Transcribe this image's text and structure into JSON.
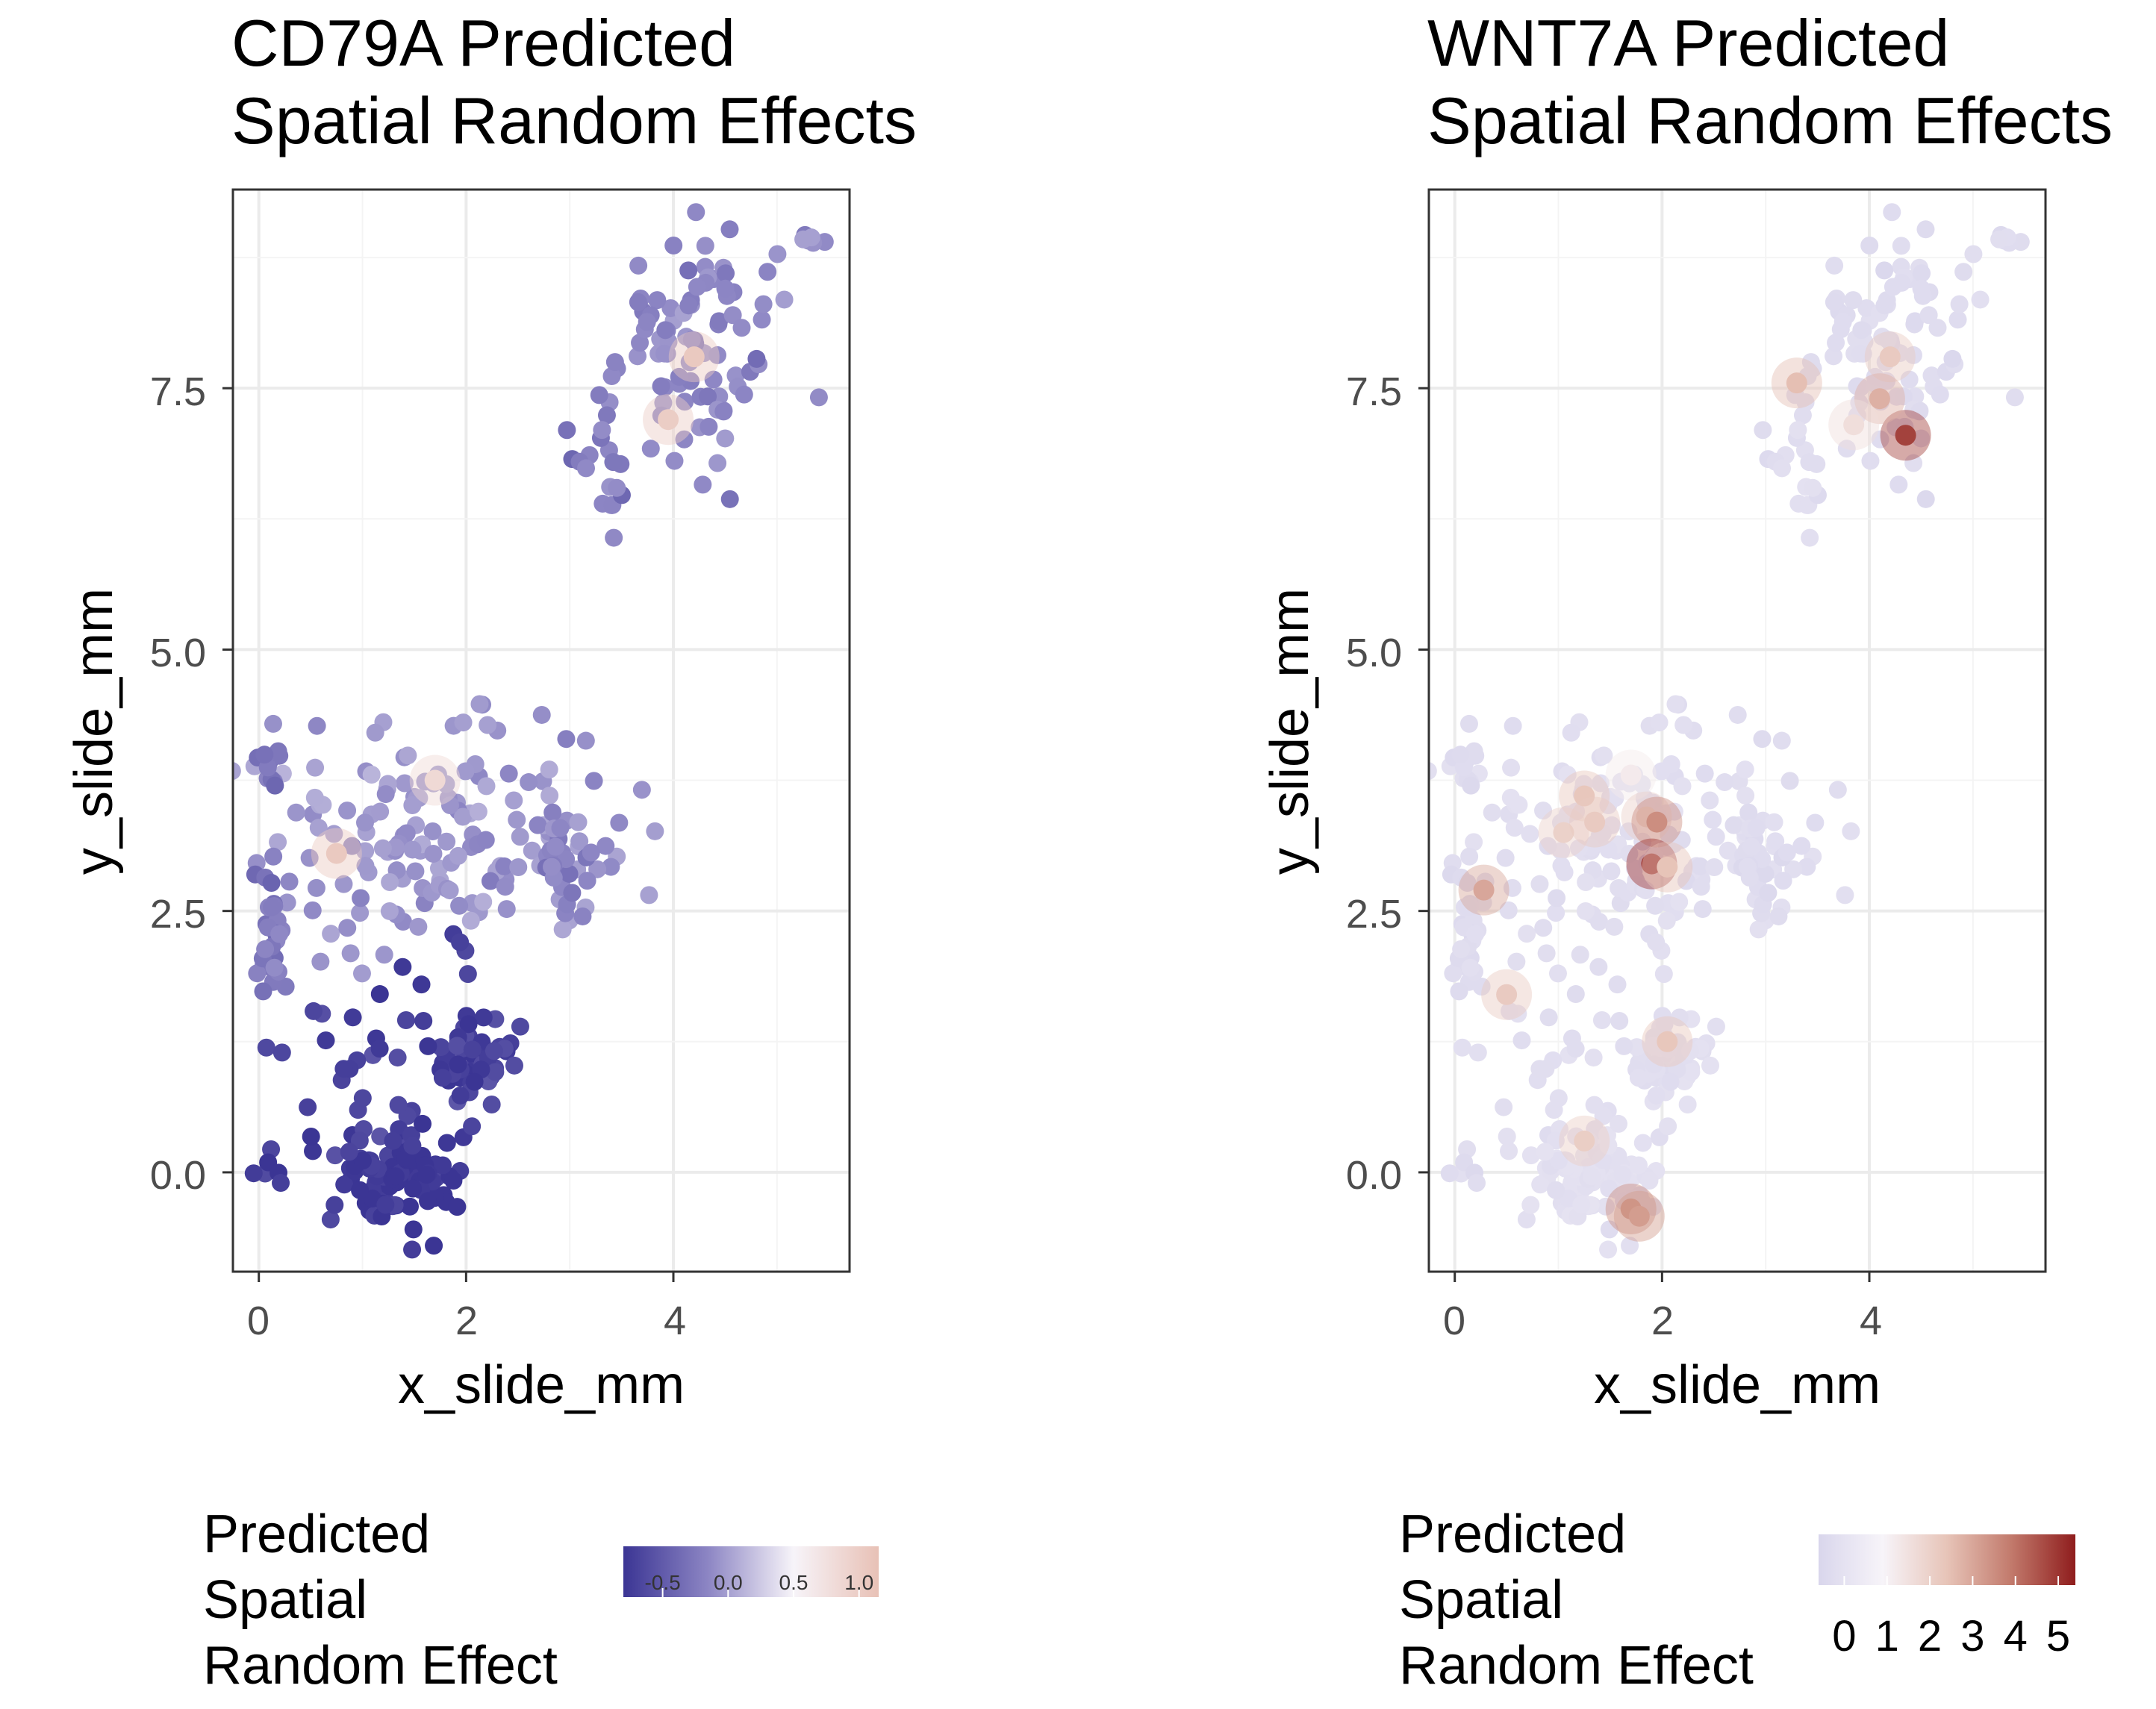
{
  "chart_data": [
    {
      "type": "scatter",
      "title_lines": [
        "CD79A Predicted",
        "Spatial Random Effects"
      ],
      "xlabel": "x_slide_mm",
      "ylabel": "y_slide_mm",
      "xlim": [
        -0.25,
        5.7
      ],
      "ylim": [
        -0.95,
        9.4
      ],
      "x_ticks": [
        0,
        2,
        4
      ],
      "x_tick_labels": [
        "0",
        "2",
        "4"
      ],
      "y_ticks": [
        0.0,
        2.5,
        5.0,
        7.5
      ],
      "y_tick_labels": [
        "0.0",
        "2.5",
        "5.0",
        "7.5"
      ],
      "grid": true,
      "legend": {
        "title_lines": [
          "Predicted",
          "Spatial",
          "Random Effect"
        ],
        "position": "bottom",
        "range": [
          -0.8,
          1.15
        ],
        "ticks": [
          -0.5,
          0.0,
          0.5,
          1.0
        ],
        "tick_labels": [
          "-0.5",
          "0.0",
          "0.5",
          "1.0"
        ],
        "colors": [
          "#3b3594",
          "#8d86c4",
          "#f7f4f9",
          "#e8c1b6"
        ]
      },
      "clusters": [
        {
          "region": "upper-right",
          "cx": 4.3,
          "cy": 7.9,
          "sx": 0.45,
          "sy": 0.55,
          "n": 90,
          "value": -0.15
        },
        {
          "region": "upper-right-strip",
          "cx": 3.35,
          "cy": 6.75,
          "sx": 0.12,
          "sy": 0.25,
          "n": 18,
          "value": -0.2
        },
        {
          "region": "upper-right-tail",
          "cx": 5.3,
          "cy": 8.9,
          "sx": 0.1,
          "sy": 0.04,
          "n": 6,
          "value": -0.1
        },
        {
          "region": "mid-band",
          "cx": 1.8,
          "cy": 3.2,
          "sx": 0.9,
          "sy": 0.5,
          "n": 160,
          "value": -0.05
        },
        {
          "region": "mid-band-right",
          "cx": 2.9,
          "cy": 3.0,
          "sx": 0.12,
          "sy": 0.2,
          "n": 30,
          "value": -0.15
        },
        {
          "region": "left-edge",
          "cx": 0.12,
          "cy": 2.2,
          "sx": 0.08,
          "sy": 0.35,
          "n": 30,
          "value": -0.25
        },
        {
          "region": "left-top",
          "cx": 0.12,
          "cy": 3.9,
          "sx": 0.06,
          "sy": 0.12,
          "n": 12,
          "value": -0.3
        },
        {
          "region": "lower-scatter",
          "cx": 1.3,
          "cy": 1.0,
          "sx": 0.7,
          "sy": 0.6,
          "n": 45,
          "value": -0.7
        },
        {
          "region": "lower-cluster",
          "cx": 2.05,
          "cy": 1.1,
          "sx": 0.2,
          "sy": 0.22,
          "n": 60,
          "value": -0.7
        },
        {
          "region": "bottom-cluster",
          "cx": 1.4,
          "cy": 0.0,
          "sx": 0.3,
          "sy": 0.22,
          "n": 90,
          "value": -0.8
        },
        {
          "region": "bottom-left",
          "cx": 0.05,
          "cy": -0.1,
          "sx": 0.12,
          "sy": 0.12,
          "n": 6,
          "value": -0.75
        }
      ],
      "hotspots": [
        {
          "x": 4.2,
          "y": 7.8,
          "value": 1.05
        },
        {
          "x": 3.95,
          "y": 7.2,
          "value": 1.0
        },
        {
          "x": 0.75,
          "y": 3.05,
          "value": 1.05
        },
        {
          "x": 1.7,
          "y": 3.75,
          "value": 0.85
        }
      ]
    },
    {
      "type": "scatter",
      "title_lines": [
        "WNT7A Predicted",
        "Spatial Random Effects"
      ],
      "xlabel": "x_slide_mm",
      "ylabel": "y_slide_mm",
      "xlim": [
        -0.25,
        5.7
      ],
      "ylim": [
        -0.95,
        9.4
      ],
      "x_ticks": [
        0,
        2,
        4
      ],
      "x_tick_labels": [
        "0",
        "2",
        "4"
      ],
      "y_ticks": [
        0.0,
        2.5,
        5.0,
        7.5
      ],
      "y_tick_labels": [
        "0.0",
        "2.5",
        "5.0",
        "7.5"
      ],
      "grid": true,
      "legend": {
        "title_lines": [
          "Predicted",
          "Spatial",
          "Random Effect"
        ],
        "position": "bottom",
        "range": [
          -0.6,
          5.4
        ],
        "ticks": [
          0,
          1,
          2,
          3,
          4,
          5
        ],
        "tick_labels": [
          "0",
          "1",
          "2",
          "3",
          "4",
          "5"
        ],
        "colors": [
          "#d9d6ec",
          "#f7f4f9",
          "#e7c4b8",
          "#c27a6c",
          "#8f1d1d"
        ]
      },
      "clusters": [
        {
          "region": "upper-right",
          "cx": 4.3,
          "cy": 7.9,
          "sx": 0.45,
          "sy": 0.55,
          "n": 90,
          "value": -0.3
        },
        {
          "region": "upper-right-strip",
          "cx": 3.35,
          "cy": 6.75,
          "sx": 0.12,
          "sy": 0.25,
          "n": 18,
          "value": -0.2
        },
        {
          "region": "upper-right-tail",
          "cx": 5.3,
          "cy": 8.9,
          "sx": 0.1,
          "sy": 0.04,
          "n": 6,
          "value": -0.3
        },
        {
          "region": "mid-band",
          "cx": 1.8,
          "cy": 3.2,
          "sx": 0.9,
          "sy": 0.5,
          "n": 160,
          "value": -0.2
        },
        {
          "region": "mid-band-right",
          "cx": 2.9,
          "cy": 3.0,
          "sx": 0.12,
          "sy": 0.2,
          "n": 30,
          "value": -0.3
        },
        {
          "region": "left-edge",
          "cx": 0.12,
          "cy": 2.2,
          "sx": 0.08,
          "sy": 0.35,
          "n": 30,
          "value": -0.3
        },
        {
          "region": "left-top",
          "cx": 0.12,
          "cy": 3.9,
          "sx": 0.06,
          "sy": 0.12,
          "n": 12,
          "value": -0.35
        },
        {
          "region": "lower-scatter",
          "cx": 1.3,
          "cy": 1.0,
          "sx": 0.7,
          "sy": 0.6,
          "n": 45,
          "value": -0.2
        },
        {
          "region": "lower-cluster",
          "cx": 2.05,
          "cy": 1.1,
          "sx": 0.2,
          "sy": 0.22,
          "n": 60,
          "value": -0.15
        },
        {
          "region": "bottom-cluster",
          "cx": 1.4,
          "cy": 0.0,
          "sx": 0.3,
          "sy": 0.22,
          "n": 90,
          "value": -0.1
        },
        {
          "region": "bottom-left",
          "cx": 0.05,
          "cy": -0.1,
          "sx": 0.12,
          "sy": 0.12,
          "n": 6,
          "value": -0.3
        }
      ],
      "hotspots": [
        {
          "x": 4.2,
          "y": 7.8,
          "value": 2.2
        },
        {
          "x": 3.3,
          "y": 7.55,
          "value": 2.5
        },
        {
          "x": 4.35,
          "y": 7.05,
          "value": 4.8
        },
        {
          "x": 4.1,
          "y": 7.4,
          "value": 2.8
        },
        {
          "x": 3.85,
          "y": 7.15,
          "value": 1.6
        },
        {
          "x": 1.25,
          "y": 3.6,
          "value": 2.3
        },
        {
          "x": 1.05,
          "y": 3.25,
          "value": 2.0
        },
        {
          "x": 1.35,
          "y": 3.35,
          "value": 2.2
        },
        {
          "x": 1.7,
          "y": 3.8,
          "value": 1.2
        },
        {
          "x": 1.85,
          "y": 3.4,
          "value": 2.0
        },
        {
          "x": 1.95,
          "y": 3.35,
          "value": 3.5
        },
        {
          "x": 1.9,
          "y": 2.95,
          "value": 5.0
        },
        {
          "x": 2.05,
          "y": 2.92,
          "value": 2.4
        },
        {
          "x": 0.28,
          "y": 2.7,
          "value": 3.0
        },
        {
          "x": 0.5,
          "y": 1.7,
          "value": 2.2
        },
        {
          "x": 2.05,
          "y": 1.25,
          "value": 2.3
        },
        {
          "x": 1.25,
          "y": 0.3,
          "value": 2.1
        },
        {
          "x": 1.7,
          "y": -0.35,
          "value": 3.5
        },
        {
          "x": 1.78,
          "y": -0.42,
          "value": 3.2
        }
      ]
    }
  ]
}
